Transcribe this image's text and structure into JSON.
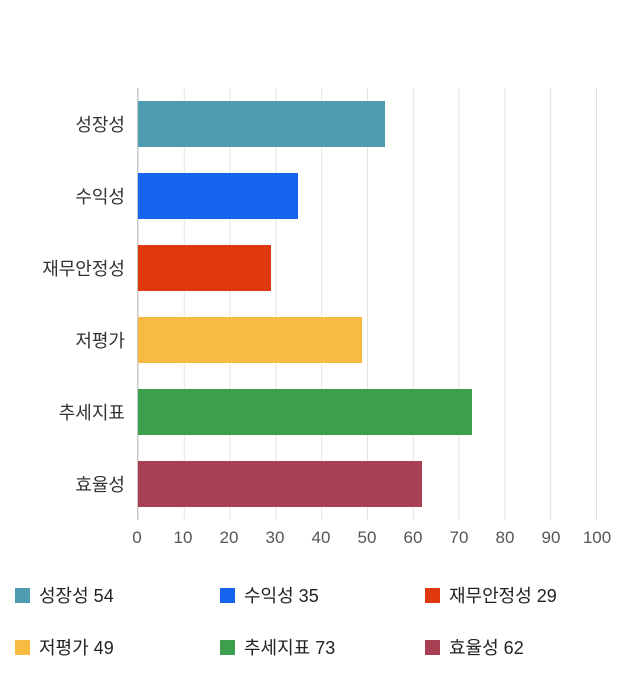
{
  "chart_data": {
    "type": "bar",
    "orientation": "horizontal",
    "title": "",
    "xlabel": "",
    "ylabel": "",
    "xlim": [
      0,
      100
    ],
    "xticks": [
      0,
      10,
      20,
      30,
      40,
      50,
      60,
      70,
      80,
      90,
      100
    ],
    "grid": true,
    "categories": [
      "성장성",
      "수익성",
      "재무안정성",
      "저평가",
      "추세지표",
      "효율성"
    ],
    "values": [
      54,
      35,
      29,
      49,
      73,
      62
    ],
    "colors": [
      "#4f9cb1",
      "#1665f0",
      "#e0390f",
      "#f6bb40",
      "#3d9e4e",
      "#a83f52"
    ],
    "legend_position": "bottom",
    "legend": [
      {
        "label": "성장성 54",
        "color": "#4f9cb1"
      },
      {
        "label": "수익성 35",
        "color": "#1665f0"
      },
      {
        "label": "재무안정성 29",
        "color": "#e0390f"
      },
      {
        "label": "저평가 49",
        "color": "#f6bb40"
      },
      {
        "label": "추세지표 73",
        "color": "#3d9e4e"
      },
      {
        "label": "효율성 62",
        "color": "#a83f52"
      }
    ]
  }
}
